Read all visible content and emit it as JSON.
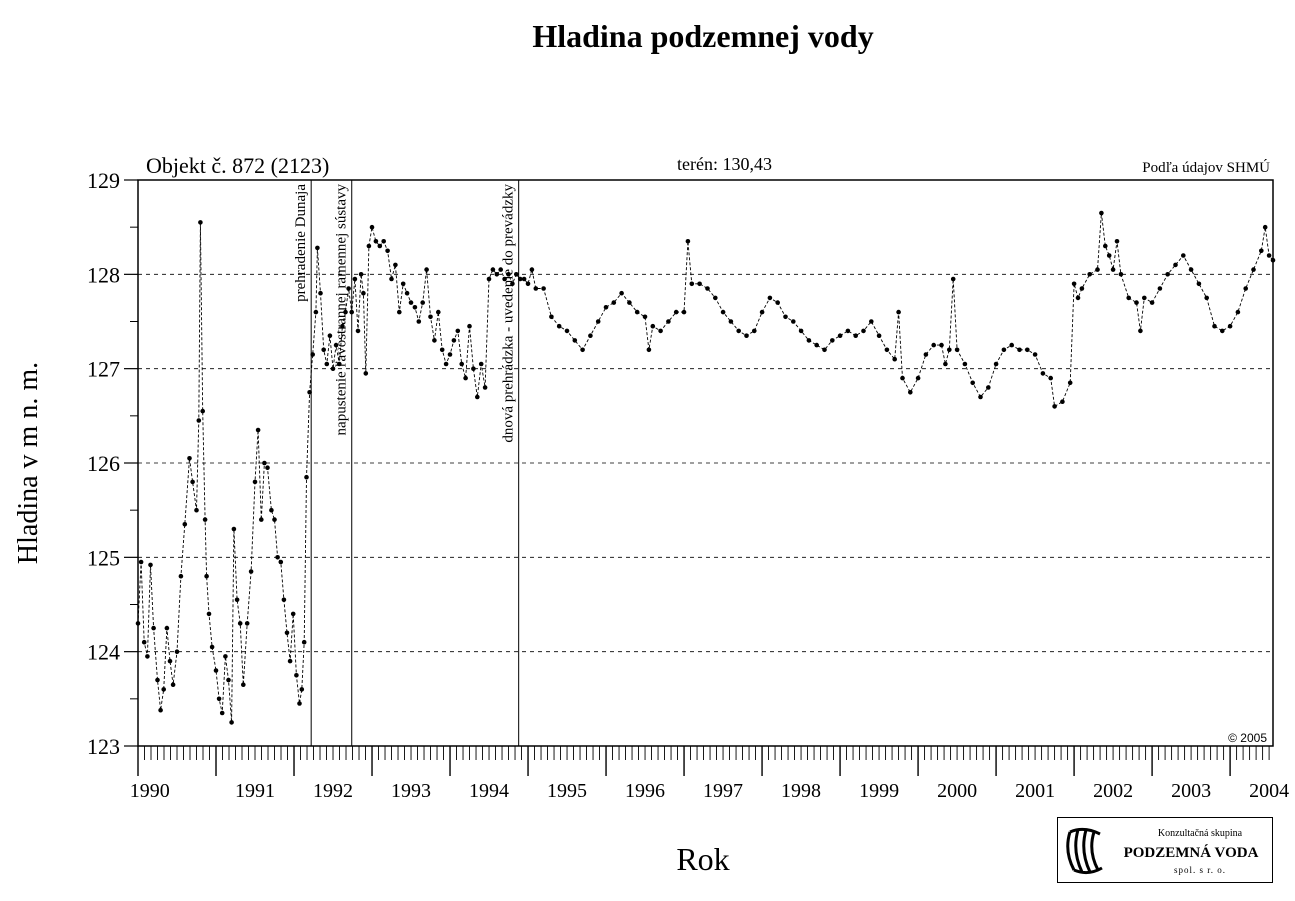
{
  "chart_data": {
    "type": "scatter",
    "title": "Hladina podzemnej vody",
    "object_label": "Objekt č. 872 (2123)",
    "terrain_label": "terén: 130,43",
    "source_label": "Podľa údajov SHMÚ",
    "copyright": "© 2005",
    "xlabel": "Rok",
    "ylabel": "Hladina v m n. m.",
    "xlim": [
      1990.0,
      2004.55
    ],
    "ylim": [
      123,
      129
    ],
    "y_ticks": [
      "123",
      "124",
      "125",
      "126",
      "127",
      "128",
      "129"
    ],
    "year_labels": [
      "1990",
      "1991",
      "1992",
      "1993",
      "1994",
      "1995",
      "1996",
      "1997",
      "1998",
      "1999",
      "2000",
      "2001",
      "2002",
      "2003",
      "2004"
    ],
    "grid": "horizontal-dashed",
    "events": [
      {
        "x": 1992.22,
        "label": "prehradenie Dunaja"
      },
      {
        "x": 1992.74,
        "label": "napustenie ľavostrannej ramennej sústavy"
      },
      {
        "x": 1994.88,
        "label": "dnová prehrádzka - uvedenie do prevádzky"
      }
    ],
    "series": [
      {
        "values": [
          [
            1990.0,
            124.3
          ],
          [
            1990.04,
            124.95
          ],
          [
            1990.08,
            124.1
          ],
          [
            1990.12,
            123.95
          ],
          [
            1990.16,
            124.92
          ],
          [
            1990.2,
            124.25
          ],
          [
            1990.25,
            123.7
          ],
          [
            1990.29,
            123.38
          ],
          [
            1990.33,
            123.6
          ],
          [
            1990.37,
            124.25
          ],
          [
            1990.41,
            123.9
          ],
          [
            1990.45,
            123.65
          ],
          [
            1990.5,
            124.0
          ],
          [
            1990.55,
            124.8
          ],
          [
            1990.6,
            125.35
          ],
          [
            1990.66,
            126.05
          ],
          [
            1990.7,
            125.8
          ],
          [
            1990.75,
            125.5
          ],
          [
            1990.78,
            126.45
          ],
          [
            1990.8,
            128.55
          ],
          [
            1990.83,
            126.55
          ],
          [
            1990.86,
            125.4
          ],
          [
            1990.88,
            124.8
          ],
          [
            1990.91,
            124.4
          ],
          [
            1990.95,
            124.05
          ],
          [
            1991.0,
            123.8
          ],
          [
            1991.04,
            123.5
          ],
          [
            1991.08,
            123.35
          ],
          [
            1991.12,
            123.95
          ],
          [
            1991.16,
            123.7
          ],
          [
            1991.2,
            123.25
          ],
          [
            1991.23,
            125.3
          ],
          [
            1991.27,
            124.55
          ],
          [
            1991.31,
            124.3
          ],
          [
            1991.35,
            123.65
          ],
          [
            1991.4,
            124.3
          ],
          [
            1991.45,
            124.85
          ],
          [
            1991.5,
            125.8
          ],
          [
            1991.54,
            126.35
          ],
          [
            1991.58,
            125.4
          ],
          [
            1991.62,
            126.0
          ],
          [
            1991.66,
            125.95
          ],
          [
            1991.71,
            125.5
          ],
          [
            1991.75,
            125.4
          ],
          [
            1991.79,
            125.0
          ],
          [
            1991.83,
            124.95
          ],
          [
            1991.87,
            124.55
          ],
          [
            1991.91,
            124.2
          ],
          [
            1991.95,
            123.9
          ],
          [
            1991.99,
            124.4
          ],
          [
            1992.03,
            123.75
          ],
          [
            1992.07,
            123.45
          ],
          [
            1992.1,
            123.6
          ],
          [
            1992.13,
            124.1
          ],
          [
            1992.16,
            125.85
          ],
          [
            1992.2,
            126.75
          ],
          [
            1992.24,
            127.15
          ],
          [
            1992.28,
            127.6
          ],
          [
            1992.3,
            128.28
          ],
          [
            1992.34,
            127.8
          ],
          [
            1992.38,
            127.2
          ],
          [
            1992.42,
            127.05
          ],
          [
            1992.46,
            127.35
          ],
          [
            1992.5,
            127.0
          ],
          [
            1992.54,
            127.25
          ],
          [
            1992.58,
            127.05
          ],
          [
            1992.62,
            127.45
          ],
          [
            1992.66,
            127.6
          ],
          [
            1992.7,
            127.85
          ],
          [
            1992.74,
            127.6
          ],
          [
            1992.78,
            127.95
          ],
          [
            1992.82,
            127.4
          ],
          [
            1992.86,
            128.0
          ],
          [
            1992.89,
            127.8
          ],
          [
            1992.92,
            126.95
          ],
          [
            1992.96,
            128.3
          ],
          [
            1993.0,
            128.5
          ],
          [
            1993.05,
            128.35
          ],
          [
            1993.1,
            128.3
          ],
          [
            1993.15,
            128.35
          ],
          [
            1993.2,
            128.25
          ],
          [
            1993.25,
            127.95
          ],
          [
            1993.3,
            128.1
          ],
          [
            1993.35,
            127.6
          ],
          [
            1993.4,
            127.9
          ],
          [
            1993.45,
            127.8
          ],
          [
            1993.5,
            127.7
          ],
          [
            1993.55,
            127.65
          ],
          [
            1993.6,
            127.5
          ],
          [
            1993.65,
            127.7
          ],
          [
            1993.7,
            128.05
          ],
          [
            1993.75,
            127.55
          ],
          [
            1993.8,
            127.3
          ],
          [
            1993.85,
            127.6
          ],
          [
            1993.9,
            127.2
          ],
          [
            1993.95,
            127.05
          ],
          [
            1994.0,
            127.15
          ],
          [
            1994.05,
            127.3
          ],
          [
            1994.1,
            127.4
          ],
          [
            1994.15,
            127.05
          ],
          [
            1994.2,
            126.9
          ],
          [
            1994.25,
            127.45
          ],
          [
            1994.3,
            127.0
          ],
          [
            1994.35,
            126.7
          ],
          [
            1994.4,
            127.05
          ],
          [
            1994.45,
            126.8
          ],
          [
            1994.5,
            127.95
          ],
          [
            1994.55,
            128.05
          ],
          [
            1994.6,
            128.0
          ],
          [
            1994.65,
            128.05
          ],
          [
            1994.7,
            127.95
          ],
          [
            1994.75,
            128.0
          ],
          [
            1994.8,
            127.9
          ],
          [
            1994.85,
            128.0
          ],
          [
            1994.9,
            127.95
          ],
          [
            1994.95,
            127.95
          ],
          [
            1995.0,
            127.9
          ],
          [
            1995.05,
            128.05
          ],
          [
            1995.1,
            127.85
          ],
          [
            1995.2,
            127.85
          ],
          [
            1995.3,
            127.55
          ],
          [
            1995.4,
            127.45
          ],
          [
            1995.5,
            127.4
          ],
          [
            1995.6,
            127.3
          ],
          [
            1995.7,
            127.2
          ],
          [
            1995.8,
            127.35
          ],
          [
            1995.9,
            127.5
          ],
          [
            1996.0,
            127.65
          ],
          [
            1996.1,
            127.7
          ],
          [
            1996.2,
            127.8
          ],
          [
            1996.3,
            127.7
          ],
          [
            1996.4,
            127.6
          ],
          [
            1996.5,
            127.55
          ],
          [
            1996.55,
            127.2
          ],
          [
            1996.6,
            127.45
          ],
          [
            1996.7,
            127.4
          ],
          [
            1996.8,
            127.5
          ],
          [
            1996.9,
            127.6
          ],
          [
            1997.0,
            127.6
          ],
          [
            1997.05,
            128.35
          ],
          [
            1997.1,
            127.9
          ],
          [
            1997.2,
            127.9
          ],
          [
            1997.3,
            127.85
          ],
          [
            1997.4,
            127.75
          ],
          [
            1997.5,
            127.6
          ],
          [
            1997.6,
            127.5
          ],
          [
            1997.7,
            127.4
          ],
          [
            1997.8,
            127.35
          ],
          [
            1997.9,
            127.4
          ],
          [
            1998.0,
            127.6
          ],
          [
            1998.1,
            127.75
          ],
          [
            1998.2,
            127.7
          ],
          [
            1998.3,
            127.55
          ],
          [
            1998.4,
            127.5
          ],
          [
            1998.5,
            127.4
          ],
          [
            1998.6,
            127.3
          ],
          [
            1998.7,
            127.25
          ],
          [
            1998.8,
            127.2
          ],
          [
            1998.9,
            127.3
          ],
          [
            1999.0,
            127.35
          ],
          [
            1999.1,
            127.4
          ],
          [
            1999.2,
            127.35
          ],
          [
            1999.3,
            127.4
          ],
          [
            1999.4,
            127.5
          ],
          [
            1999.5,
            127.35
          ],
          [
            1999.6,
            127.2
          ],
          [
            1999.7,
            127.1
          ],
          [
            1999.75,
            127.6
          ],
          [
            1999.8,
            126.9
          ],
          [
            1999.9,
            126.75
          ],
          [
            2000.0,
            126.9
          ],
          [
            2000.1,
            127.15
          ],
          [
            2000.2,
            127.25
          ],
          [
            2000.3,
            127.25
          ],
          [
            2000.35,
            127.05
          ],
          [
            2000.4,
            127.2
          ],
          [
            2000.45,
            127.95
          ],
          [
            2000.5,
            127.2
          ],
          [
            2000.6,
            127.05
          ],
          [
            2000.7,
            126.85
          ],
          [
            2000.8,
            126.7
          ],
          [
            2000.9,
            126.8
          ],
          [
            2001.0,
            127.05
          ],
          [
            2001.1,
            127.2
          ],
          [
            2001.2,
            127.25
          ],
          [
            2001.3,
            127.2
          ],
          [
            2001.4,
            127.2
          ],
          [
            2001.5,
            127.15
          ],
          [
            2001.6,
            126.95
          ],
          [
            2001.7,
            126.9
          ],
          [
            2001.75,
            126.6
          ],
          [
            2001.85,
            126.65
          ],
          [
            2001.95,
            126.85
          ],
          [
            2002.0,
            127.9
          ],
          [
            2002.05,
            127.75
          ],
          [
            2002.1,
            127.85
          ],
          [
            2002.2,
            128.0
          ],
          [
            2002.3,
            128.05
          ],
          [
            2002.35,
            128.65
          ],
          [
            2002.4,
            128.3
          ],
          [
            2002.45,
            128.2
          ],
          [
            2002.5,
            128.05
          ],
          [
            2002.55,
            128.35
          ],
          [
            2002.6,
            128.0
          ],
          [
            2002.7,
            127.75
          ],
          [
            2002.8,
            127.7
          ],
          [
            2002.85,
            127.4
          ],
          [
            2002.9,
            127.75
          ],
          [
            2003.0,
            127.7
          ],
          [
            2003.1,
            127.85
          ],
          [
            2003.2,
            128.0
          ],
          [
            2003.3,
            128.1
          ],
          [
            2003.4,
            128.2
          ],
          [
            2003.5,
            128.05
          ],
          [
            2003.6,
            127.9
          ],
          [
            2003.7,
            127.75
          ],
          [
            2003.8,
            127.45
          ],
          [
            2003.9,
            127.4
          ],
          [
            2004.0,
            127.45
          ],
          [
            2004.1,
            127.6
          ],
          [
            2004.2,
            127.85
          ],
          [
            2004.3,
            128.05
          ],
          [
            2004.4,
            128.25
          ],
          [
            2004.45,
            128.5
          ],
          [
            2004.5,
            128.2
          ],
          [
            2004.55,
            128.15
          ]
        ]
      }
    ]
  },
  "logo": {
    "line1": "Konzultačná skupina",
    "line2": "PODZEMNÁ VODA",
    "line3": "spol. s r. o."
  }
}
